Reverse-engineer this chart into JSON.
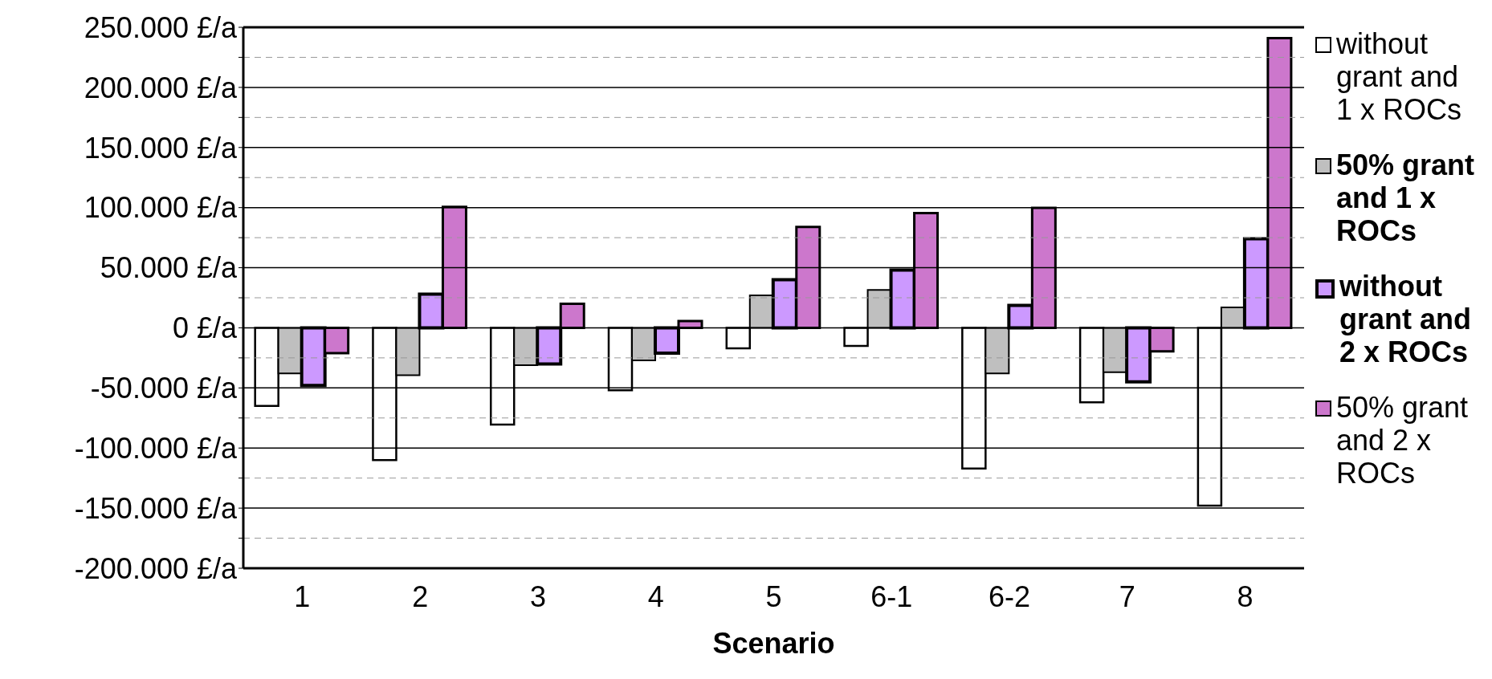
{
  "chart_data": {
    "type": "bar",
    "xlabel": "Scenario",
    "categories": [
      "1",
      "2",
      "3",
      "4",
      "5",
      "6-1",
      "6-2",
      "7",
      "8"
    ],
    "series": [
      {
        "name": "without grant and 1 x ROCs",
        "color": "#ffffff",
        "values": [
          -65000,
          -110000,
          -80500,
          -52000,
          -17000,
          -15000,
          -117000,
          -62000,
          -148000
        ]
      },
      {
        "name": "50% grant and 1 x ROCs",
        "color": "#bfbfbf",
        "values": [
          -38000,
          -39500,
          -31000,
          -27000,
          27000,
          31500,
          -38000,
          -37000,
          17000
        ]
      },
      {
        "name": "without grant and 2 x ROCs",
        "color": "#cc99ff",
        "values": [
          -48000,
          28000,
          -30000,
          -21000,
          40000,
          48000,
          18700,
          -45000,
          74000
        ]
      },
      {
        "name": "50% grant and 2 x ROCs",
        "color": "#cc77cc",
        "values": [
          -21000,
          100600,
          20000,
          5700,
          84000,
          95400,
          99700,
          -19500,
          241000
        ]
      }
    ],
    "ylim": [
      -200000,
      250000
    ],
    "yticks": [
      {
        "value": -200000,
        "label": "-200.000 £/a"
      },
      {
        "value": -175000,
        "label": null
      },
      {
        "value": -150000,
        "label": "-150.000 £/a"
      },
      {
        "value": -125000,
        "label": null
      },
      {
        "value": -100000,
        "label": "-100.000 £/a"
      },
      {
        "value": -75000,
        "label": null
      },
      {
        "value": -50000,
        "label": "-50.000 £/a"
      },
      {
        "value": -25000,
        "label": null
      },
      {
        "value": 0,
        "label": "0 £/a"
      },
      {
        "value": 25000,
        "label": null
      },
      {
        "value": 50000,
        "label": "50.000 £/a"
      },
      {
        "value": 75000,
        "label": null
      },
      {
        "value": 100000,
        "label": "100.000 £/a"
      },
      {
        "value": 125000,
        "label": null
      },
      {
        "value": 150000,
        "label": "150.000 £/a"
      },
      {
        "value": 175000,
        "label": null
      },
      {
        "value": 200000,
        "label": "200.000 £/a"
      },
      {
        "value": 225000,
        "label": null
      },
      {
        "value": 250000,
        "label": "250.000 £/a"
      }
    ],
    "grid": "y",
    "legend": "right"
  }
}
